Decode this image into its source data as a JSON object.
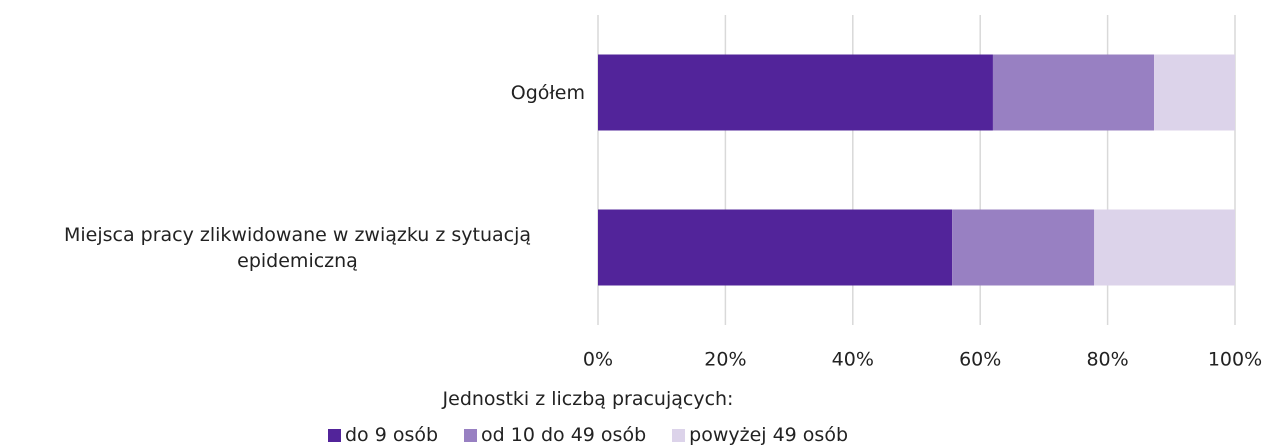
{
  "chart_data": {
    "type": "stacked-bar-horizontal",
    "categories": [
      "Ogółem",
      "Miejsca pracy zlikwidowane w związku z sytuacją epidemiczną"
    ],
    "series": [
      {
        "name": "do 9 osób",
        "color": "#52249a",
        "values": [
          62.0,
          55.6
        ]
      },
      {
        "name": "od 10 do 49 osób",
        "color": "#9880c2",
        "values": [
          25.3,
          22.3
        ]
      },
      {
        "name": "powyżej 49 osób",
        "color": "#dcd3ea",
        "values": [
          12.7,
          22.1
        ]
      }
    ],
    "xlim": [
      0,
      100
    ],
    "xticks": [
      {
        "value": 0,
        "label": "0%"
      },
      {
        "value": 20,
        "label": "20%"
      },
      {
        "value": 40,
        "label": "40%"
      },
      {
        "value": 60,
        "label": "60%"
      },
      {
        "value": 80,
        "label": "80%"
      },
      {
        "value": 100,
        "label": "100%"
      }
    ],
    "grid": true,
    "legend_title": "Jednostki z liczbą pracujących:",
    "legend_position": "bottom"
  }
}
